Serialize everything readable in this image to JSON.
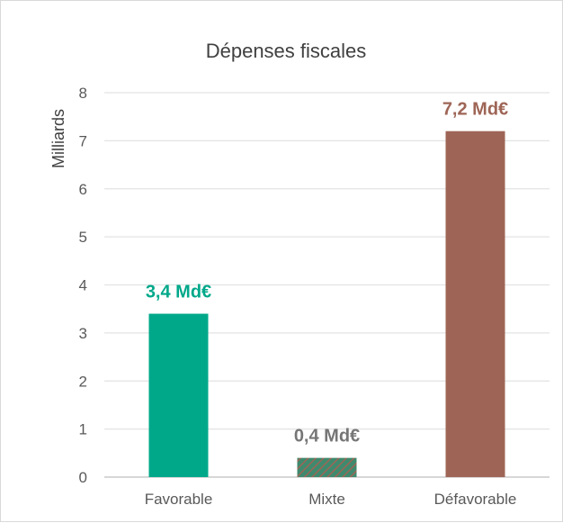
{
  "chart_data": {
    "type": "bar",
    "title": "Dépenses fiscales",
    "xlabel": "",
    "ylabel": "Milliards",
    "ylim": [
      0,
      8
    ],
    "yticks": [
      "0",
      "1",
      "2",
      "3",
      "4",
      "5",
      "6",
      "7",
      "8"
    ],
    "grid": true,
    "legend": "none",
    "categories": [
      "Favorable",
      "Mixte",
      "Défavorable"
    ],
    "values": [
      3.4,
      0.4,
      7.2
    ],
    "data_labels": [
      "3,4 Md€",
      "0,4 Md€",
      "7,2 Md€"
    ],
    "colors": [
      "#00a88a",
      "#3f8a6e",
      "#9e6556"
    ],
    "label_colors": [
      "#00a88a",
      "#767676",
      "#9e6556"
    ],
    "patterns": [
      "solid",
      "hatched",
      "solid"
    ]
  }
}
